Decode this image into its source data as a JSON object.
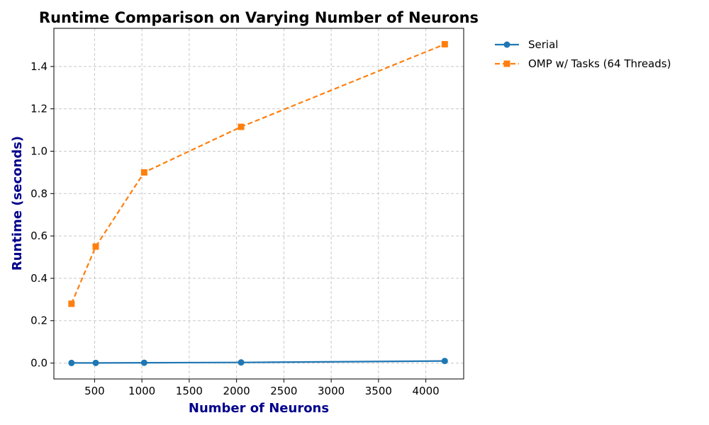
{
  "chart_data": {
    "type": "line",
    "title": "Runtime Comparison on Varying Number of Neurons",
    "xlabel": "Number of Neurons",
    "ylabel": "Runtime (seconds)",
    "xlim": [
      70,
      4400
    ],
    "ylim": [
      -0.075,
      1.58
    ],
    "xticks": [
      500,
      1000,
      1500,
      2000,
      2500,
      3000,
      3500,
      4000
    ],
    "yticks": [
      0.0,
      0.2,
      0.4,
      0.6,
      0.8,
      1.0,
      1.2,
      1.4
    ],
    "grid": true,
    "legend_position": "outside-right",
    "series": [
      {
        "name": "Serial",
        "color": "#1f77b4",
        "marker": "circle",
        "line_style": "solid",
        "x": [
          256,
          512,
          1024,
          2048,
          4200
        ],
        "y": [
          0.0005,
          0.0007,
          0.0015,
          0.003,
          0.01
        ]
      },
      {
        "name": "OMP w/ Tasks (64 Threads)",
        "color": "#ff7f0e",
        "marker": "square",
        "line_style": "dashed",
        "x": [
          256,
          512,
          1024,
          2048,
          4200
        ],
        "y": [
          0.28,
          0.55,
          0.9,
          1.115,
          1.505
        ]
      }
    ]
  }
}
